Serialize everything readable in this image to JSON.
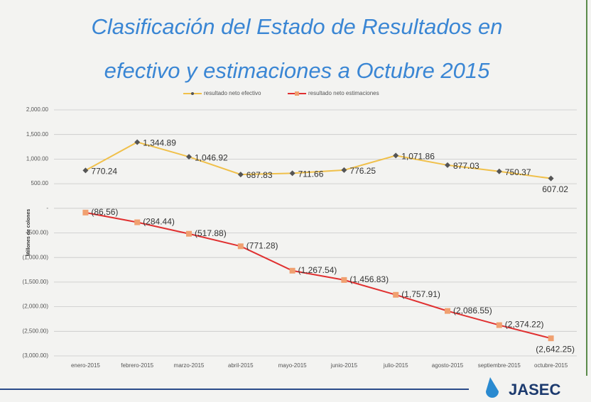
{
  "chart_data": {
    "type": "line",
    "title": [
      "Clasificación del Estado de Resultados en",
      "efectivo y estimaciones  a Octubre 2015"
    ],
    "y_label": "Millones de colones",
    "categories": [
      "enero-2015",
      "febrero-2015",
      "marzo-2015",
      "abril-2015",
      "mayo-2015",
      "junio-2015",
      "julio-2015",
      "agosto-2015",
      "septiembre-2015",
      "octubre-2015"
    ],
    "series": [
      {
        "name": "resultado neto efectivo",
        "color": "#f0c04a",
        "marker_color": "#555555",
        "values": [
          770.24,
          1344.89,
          1046.92,
          687.83,
          711.66,
          776.25,
          1071.86,
          877.03,
          750.37,
          607.02
        ],
        "value_labels": [
          "770.24",
          "1,344.89",
          "1,046.92",
          "687.83",
          "711.66",
          "776.25",
          "1,071.86",
          "877.03",
          "750.37",
          "607.02"
        ]
      },
      {
        "name": "resultado neto estimaciones",
        "color": "#e03030",
        "marker_color": "#f0a070",
        "values": [
          -86.56,
          -284.44,
          -517.88,
          -771.28,
          -1267.54,
          -1456.83,
          -1757.91,
          -2086.55,
          -2374.22,
          -2642.25
        ],
        "value_labels": [
          "(86,56)",
          "(284.44)",
          "(517.88)",
          "(771.28)",
          "(1,267.54)",
          "(1,456.83)",
          "(1,757.91)",
          "(2,086.55)",
          "(2,374.22)",
          "(2,642.25)"
        ]
      }
    ],
    "ylim": [
      -3000,
      2000
    ],
    "yticks": [
      {
        "value": 2000,
        "label": "2,000.00"
      },
      {
        "value": 1500,
        "label": "1,500.00"
      },
      {
        "value": 1000,
        "label": "1,000.00"
      },
      {
        "value": 500,
        "label": "500.00"
      },
      {
        "value": 0,
        "label": "-"
      },
      {
        "value": -500,
        "label": "(500.00)"
      },
      {
        "value": -1000,
        "label": "(1,000.00)"
      },
      {
        "value": -1500,
        "label": "(1,500.00)"
      },
      {
        "value": -2000,
        "label": "(2,000.00)"
      },
      {
        "value": -2500,
        "label": "(2,500.00)"
      },
      {
        "value": -3000,
        "label": "(3,000.00)"
      }
    ],
    "grid": true,
    "legend": "top"
  },
  "footer_logo": "JASEC"
}
